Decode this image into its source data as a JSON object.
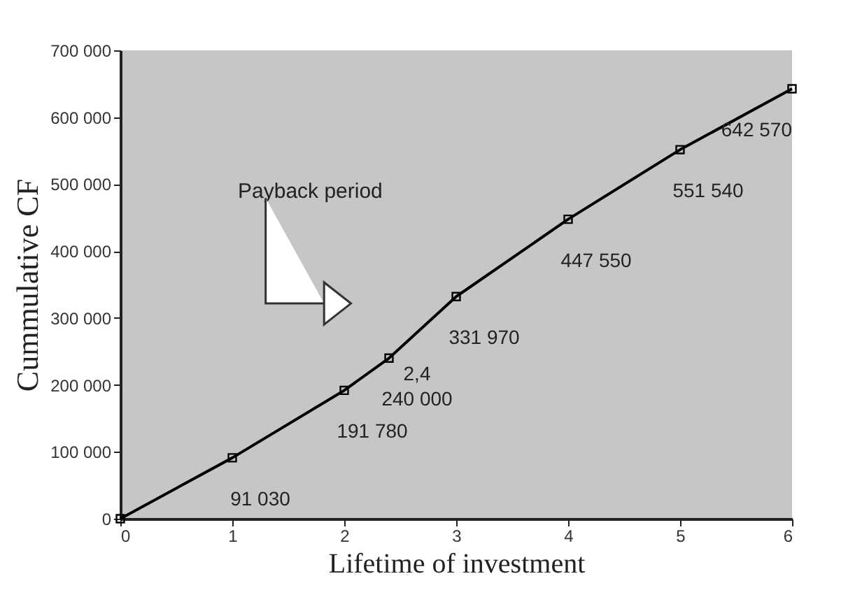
{
  "chart_data": {
    "type": "line",
    "xlabel": "Lifetime of investment",
    "ylabel": "Cummulative CF",
    "x": [
      0,
      1,
      2,
      2.4,
      3,
      4,
      5,
      6
    ],
    "series": [
      {
        "color": "#000000",
        "values": [
          0,
          91030,
          191780,
          240000,
          331970,
          447550,
          551540,
          642570
        ],
        "value_labels": [
          null,
          "91 030",
          "191 780",
          "240 000",
          "331 970",
          "447 550",
          "551 540",
          "642 570"
        ]
      }
    ],
    "xlim": [
      0,
      6
    ],
    "xticks": [
      0,
      1,
      2,
      3,
      4,
      5,
      6
    ],
    "ylim": [
      0,
      700000
    ],
    "yticks": [
      {
        "value": 0,
        "label": "0"
      },
      {
        "value": 100000,
        "label": "100 000"
      },
      {
        "value": 200000,
        "label": "200 000"
      },
      {
        "value": 300000,
        "label": "300 000"
      },
      {
        "value": 400000,
        "label": "400 000"
      },
      {
        "value": 500000,
        "label": "500 000"
      },
      {
        "value": 600000,
        "label": "600 000"
      },
      {
        "value": 700000,
        "label": "700 000"
      }
    ],
    "annotations": [
      {
        "text": "2,4",
        "x": 2.4,
        "y": 240000
      },
      "Payback period"
    ],
    "marker": "square",
    "grid": false
  }
}
